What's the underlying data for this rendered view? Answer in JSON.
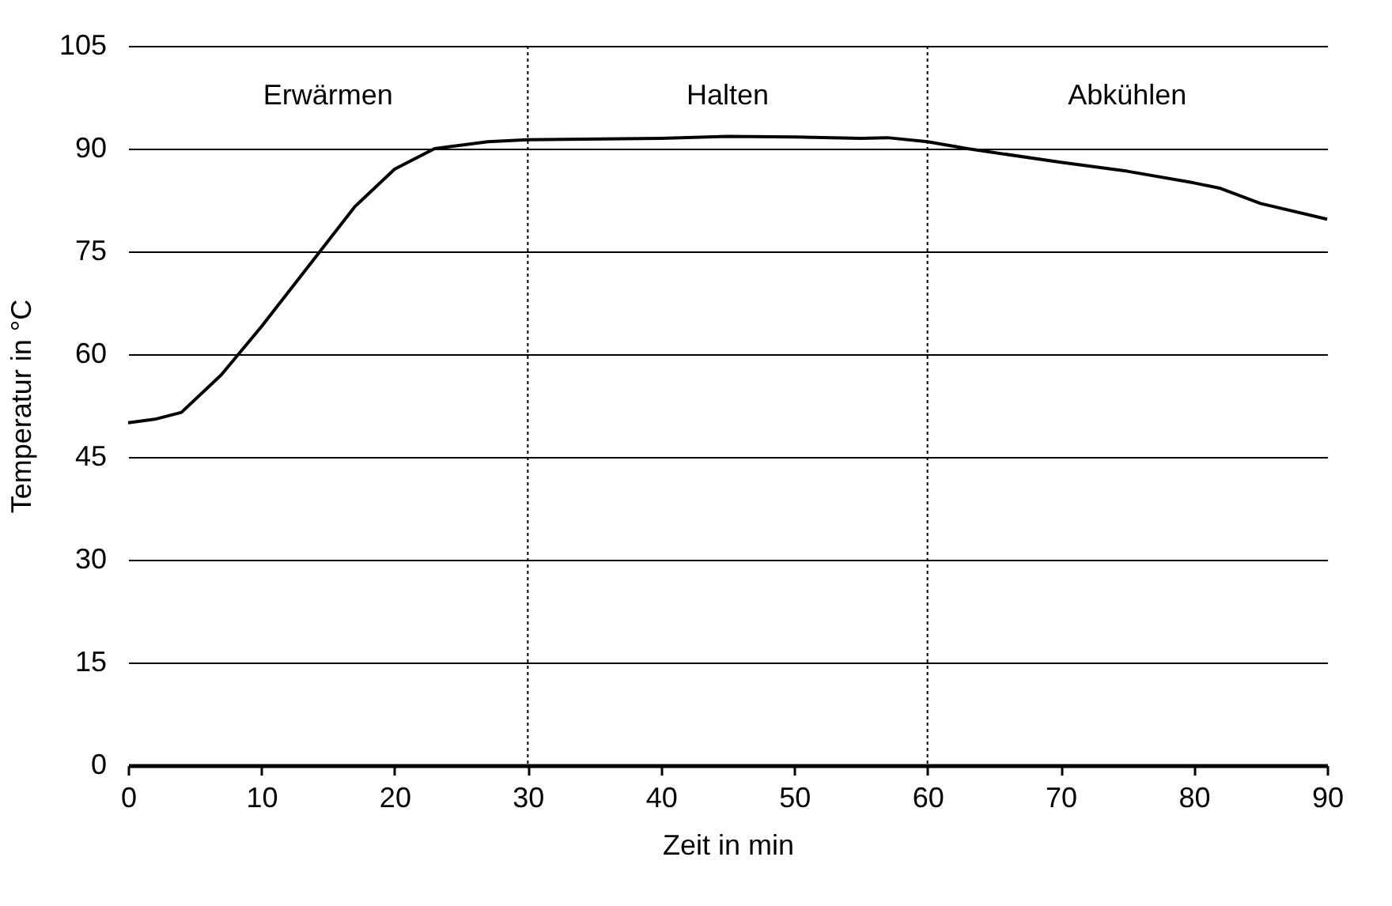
{
  "chart_data": {
    "type": "line",
    "xlabel": "Zeit in min",
    "ylabel": "Temperatur in °C",
    "x": [
      0,
      2,
      4,
      7,
      10,
      14,
      17,
      20,
      23,
      27,
      30,
      40,
      45,
      50,
      55,
      57,
      60,
      63,
      70,
      75,
      80,
      82,
      85,
      90
    ],
    "series": [
      {
        "color": "#000000",
        "values": [
          50,
          50.5,
          51.5,
          57,
          64,
          74,
          81.5,
          87,
          90,
          91,
          91.3,
          91.5,
          91.8,
          91.7,
          91.5,
          91.6,
          91,
          90,
          88,
          86.7,
          85,
          84.2,
          82,
          79.7
        ]
      }
    ],
    "xlim": [
      0,
      90
    ],
    "xticks": [
      0,
      10,
      20,
      30,
      40,
      50,
      60,
      70,
      80,
      90
    ],
    "ylim": [
      0,
      105
    ],
    "yticks": [
      0,
      15,
      30,
      45,
      60,
      75,
      90,
      105
    ],
    "grid": "y",
    "legend": false,
    "marker": "none",
    "line_style": "solid",
    "ref_lines": [
      {
        "axis": "x",
        "value": 30,
        "line_style": "dotted"
      },
      {
        "axis": "x",
        "value": 60,
        "line_style": "dotted"
      }
    ],
    "annotations": [
      "Erwärmen",
      "Halten",
      "Abkühlen"
    ]
  }
}
